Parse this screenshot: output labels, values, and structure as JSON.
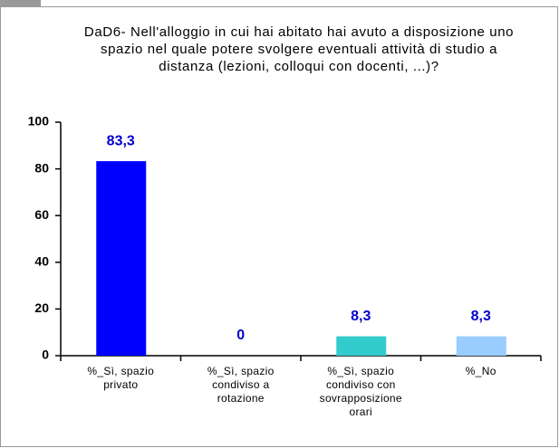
{
  "chart_data": {
    "type": "bar",
    "title": "DaD6- Nell'alloggio in cui hai abitato hai avuto a disposizione uno spazio nel quale potere svolgere eventuali attività di studio a distanza (lezioni, colloqui con docenti, ...)?",
    "categories": [
      "%_Sì, spazio privato",
      "%_Sì, spazio condiviso a rotazione",
      "%_Sì, spazio condiviso con sovrapposizione orari",
      "%_No"
    ],
    "values": [
      83.3,
      0,
      8.3,
      8.3
    ],
    "value_labels": [
      "83,3",
      "0",
      "8,3",
      "8,3"
    ],
    "colors": [
      "#0000ff",
      "#0000ff",
      "#33cccc",
      "#99ccff"
    ],
    "ylim": [
      0,
      100
    ],
    "yticks": [
      0,
      20,
      40,
      60,
      80,
      100
    ],
    "grid": false
  }
}
